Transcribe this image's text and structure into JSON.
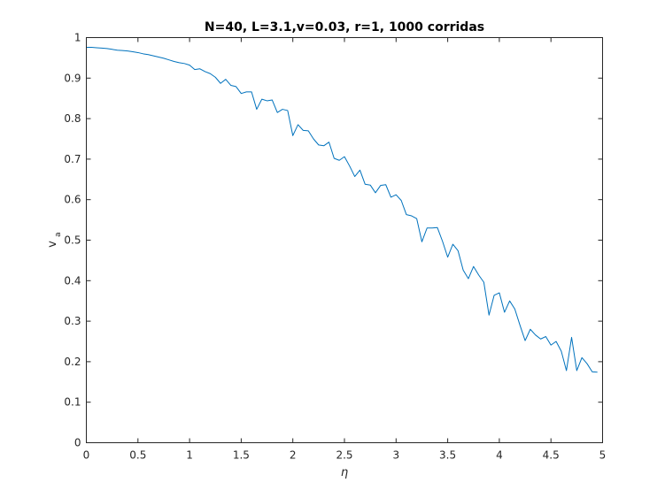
{
  "chart_data": {
    "type": "line",
    "title": "N=40, L=3.1,v=0.03, r=1, 1000 corridas",
    "xlabel": "η",
    "ylabel_main": "v",
    "ylabel_sub": "a",
    "xlim": [
      0,
      5
    ],
    "ylim": [
      0,
      1
    ],
    "xticks": [
      "0",
      "0.5",
      "1",
      "1.5",
      "2",
      "2.5",
      "3",
      "3.5",
      "4",
      "4.5",
      "5"
    ],
    "yticks": [
      "0",
      "0.1",
      "0.2",
      "0.3",
      "0.4",
      "0.5",
      "0.6",
      "0.7",
      "0.8",
      "0.9",
      "1"
    ],
    "grid": false,
    "series_color": "#0072BD",
    "series": [
      {
        "x": [
          0,
          0.05,
          0.1,
          0.15,
          0.2,
          0.25,
          0.3,
          0.35,
          0.4,
          0.45,
          0.5,
          0.55,
          0.6,
          0.65,
          0.7,
          0.75,
          0.8,
          0.85,
          0.9,
          0.95,
          1.0,
          1.05,
          1.1,
          1.15,
          1.2,
          1.25,
          1.3,
          1.35,
          1.4,
          1.45,
          1.5,
          1.55,
          1.6,
          1.65,
          1.7,
          1.75,
          1.8,
          1.85,
          1.9,
          1.95,
          2.0,
          2.05,
          2.1,
          2.15,
          2.2,
          2.25,
          2.3,
          2.35,
          2.4,
          2.45,
          2.5,
          2.55,
          2.6,
          2.65,
          2.7,
          2.75,
          2.8,
          2.85,
          2.9,
          2.95,
          3.0,
          3.05,
          3.1,
          3.15,
          3.2,
          3.25,
          3.3,
          3.35,
          3.4,
          3.45,
          3.5,
          3.55,
          3.6,
          3.65,
          3.7,
          3.75,
          3.8,
          3.85,
          3.9,
          3.95,
          4.0,
          4.05,
          4.1,
          4.15,
          4.2,
          4.25,
          4.3,
          4.35,
          4.4,
          4.45,
          4.5,
          4.55,
          4.6,
          4.65,
          4.7,
          4.75,
          4.8,
          4.85,
          4.9,
          4.95
        ],
        "values": [
          0.976,
          0.976,
          0.975,
          0.974,
          0.973,
          0.971,
          0.969,
          0.968,
          0.967,
          0.965,
          0.963,
          0.96,
          0.958,
          0.955,
          0.952,
          0.949,
          0.945,
          0.941,
          0.938,
          0.936,
          0.932,
          0.921,
          0.923,
          0.916,
          0.911,
          0.902,
          0.887,
          0.897,
          0.882,
          0.879,
          0.862,
          0.866,
          0.866,
          0.823,
          0.848,
          0.844,
          0.846,
          0.815,
          0.823,
          0.82,
          0.758,
          0.785,
          0.771,
          0.77,
          0.75,
          0.735,
          0.733,
          0.742,
          0.702,
          0.697,
          0.706,
          0.683,
          0.657,
          0.673,
          0.638,
          0.636,
          0.617,
          0.635,
          0.637,
          0.606,
          0.612,
          0.598,
          0.563,
          0.56,
          0.553,
          0.496,
          0.53,
          0.53,
          0.531,
          0.497,
          0.458,
          0.49,
          0.474,
          0.426,
          0.405,
          0.435,
          0.414,
          0.396,
          0.315,
          0.364,
          0.37,
          0.322,
          0.35,
          0.33,
          0.29,
          0.252,
          0.28,
          0.266,
          0.256,
          0.262,
          0.241,
          0.25,
          0.226,
          0.178,
          0.26,
          0.178,
          0.21,
          0.195,
          0.175,
          0.174
        ]
      }
    ]
  }
}
